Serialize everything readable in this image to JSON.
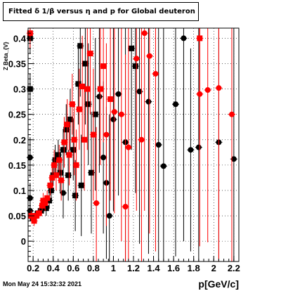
{
  "title": "Fitted δ 1/β versus η and p for Global deuteron",
  "timestamp": "Mon May 24 15:32:32 2021",
  "chart_data": {
    "type": "scatter",
    "title": "Fitted δ 1/β versus η and p for Global deuteron",
    "xlabel": "p[GeV/c]",
    "ylabel": "Z Beta_{V}",
    "xlim": [
      0.15,
      2.25
    ],
    "ylim": [
      -0.04,
      0.42
    ],
    "grid": true,
    "x_ticks": [
      0.2,
      0.4,
      0.6,
      0.8,
      1,
      1.2,
      1.4,
      1.6,
      1.8,
      2,
      2.2
    ],
    "x_tick_labels": [
      "0.2",
      "0.4",
      "0.6",
      "0.8",
      "1",
      "1.2",
      "1.4",
      "1.6",
      "1.8",
      "2",
      "2.2"
    ],
    "y_ticks": [
      0,
      0.05,
      0.1,
      0.15,
      0.2,
      0.25,
      0.3,
      0.35,
      0.4
    ],
    "y_tick_labels": [
      "0",
      "0.05",
      "0.1",
      "0.15",
      "0.2",
      "0.25",
      "0.3",
      "0.35",
      "0.4"
    ],
    "colors": {
      "black_series": "#000000",
      "red_series": "#ff0000"
    },
    "series": [
      {
        "color": "#000000",
        "points": [
          {
            "x": 0.17,
            "y": 0.4,
            "err": 0.03,
            "m": "square"
          },
          {
            "x": 0.17,
            "y": 0.3,
            "err": 0.03,
            "m": "square"
          },
          {
            "x": 0.17,
            "y": 0.165,
            "err": 0.04,
            "m": "circle"
          },
          {
            "x": 0.17,
            "y": 0.085,
            "err": 0.03,
            "m": "circle"
          },
          {
            "x": 0.17,
            "y": 0.06,
            "err": 0.02,
            "m": "circle"
          },
          {
            "x": 0.2,
            "y": 0.045,
            "err": 0.01,
            "m": "square"
          },
          {
            "x": 0.22,
            "y": 0.05,
            "err": 0.01,
            "m": "square"
          },
          {
            "x": 0.25,
            "y": 0.055,
            "err": 0.01,
            "m": "square"
          },
          {
            "x": 0.28,
            "y": 0.06,
            "err": 0.01,
            "m": "square"
          },
          {
            "x": 0.31,
            "y": 0.07,
            "err": 0.01,
            "m": "square"
          },
          {
            "x": 0.33,
            "y": 0.065,
            "err": 0.015,
            "m": "square"
          },
          {
            "x": 0.36,
            "y": 0.08,
            "err": 0.015,
            "m": "square"
          },
          {
            "x": 0.38,
            "y": 0.1,
            "err": 0.02,
            "m": "square"
          },
          {
            "x": 0.4,
            "y": 0.13,
            "err": 0.02,
            "m": "square"
          },
          {
            "x": 0.42,
            "y": 0.16,
            "err": 0.03,
            "m": "square"
          },
          {
            "x": 0.45,
            "y": 0.17,
            "err": 0.03,
            "m": "square"
          },
          {
            "x": 0.47,
            "y": 0.135,
            "err": 0.04,
            "m": "square"
          },
          {
            "x": 0.5,
            "y": 0.18,
            "err": 0.04,
            "m": "square"
          },
          {
            "x": 0.5,
            "y": 0.095,
            "err": 0.05,
            "m": "circle"
          },
          {
            "x": 0.53,
            "y": 0.22,
            "err": 0.05,
            "m": "square"
          },
          {
            "x": 0.55,
            "y": 0.13,
            "err": 0.05,
            "m": "square"
          },
          {
            "x": 0.57,
            "y": 0.24,
            "err": 0.06,
            "m": "square"
          },
          {
            "x": 0.6,
            "y": 0.18,
            "err": 0.06,
            "m": "square"
          },
          {
            "x": 0.62,
            "y": 0.09,
            "err": 0.07,
            "m": "square"
          },
          {
            "x": 0.65,
            "y": 0.31,
            "err": 0.08,
            "m": "square"
          },
          {
            "x": 0.67,
            "y": 0.385,
            "err": 0.1,
            "m": "square"
          },
          {
            "x": 0.68,
            "y": 0.11,
            "err": 0.1,
            "m": "square"
          },
          {
            "x": 0.72,
            "y": 0.35,
            "err": 0.12,
            "m": "square"
          },
          {
            "x": 0.75,
            "y": 0.27,
            "err": 0.12,
            "m": "square"
          },
          {
            "x": 0.78,
            "y": 0.135,
            "err": 0.12,
            "m": "square"
          },
          {
            "x": 0.82,
            "y": 0.25,
            "err": 0.15,
            "m": "square"
          },
          {
            "x": 0.86,
            "y": 0.285,
            "err": 0.15,
            "m": "circle"
          },
          {
            "x": 0.9,
            "y": 0.165,
            "err": 0.15,
            "m": "circle"
          },
          {
            "x": 0.93,
            "y": 0.115,
            "err": 0.15,
            "m": "circle"
          },
          {
            "x": 0.96,
            "y": 0.05,
            "err": 0.2,
            "m": "circle"
          },
          {
            "x": 1.0,
            "y": 0.24,
            "err": 0.18,
            "m": "circle"
          },
          {
            "x": 1.05,
            "y": 0.29,
            "err": 0.2,
            "m": "circle"
          },
          {
            "x": 1.12,
            "y": 0.195,
            "err": 0.25,
            "m": "circle"
          },
          {
            "x": 1.18,
            "y": 0.38,
            "err": 0.2,
            "m": "square"
          },
          {
            "x": 1.22,
            "y": 0.345,
            "err": 0.25,
            "m": "square"
          },
          {
            "x": 1.26,
            "y": 0.295,
            "err": 0.3,
            "m": "circle"
          },
          {
            "x": 1.35,
            "y": 0.275,
            "err": 0.3,
            "m": "circle"
          },
          {
            "x": 1.45,
            "y": 0.19,
            "err": 0.35,
            "m": "circle"
          },
          {
            "x": 1.5,
            "y": 0.148,
            "err": 0.35,
            "m": "circle"
          },
          {
            "x": 1.62,
            "y": 0.27,
            "err": 0.3,
            "m": "circle"
          },
          {
            "x": 1.7,
            "y": 0.4,
            "err": 0.4,
            "m": "circle"
          },
          {
            "x": 1.77,
            "y": 0.18,
            "err": 0.2,
            "m": "circle"
          },
          {
            "x": 1.85,
            "y": 0.185,
            "err": 0.3,
            "m": "circle"
          },
          {
            "x": 2.05,
            "y": 0.195,
            "err": 0.3,
            "m": "circle"
          },
          {
            "x": 2.2,
            "y": 0.162,
            "err": 0.3,
            "m": "circle"
          }
        ]
      },
      {
        "color": "#ff0000",
        "points": [
          {
            "x": 0.17,
            "y": 0.41,
            "err": 0.03,
            "m": "square"
          },
          {
            "x": 0.18,
            "y": 0.05,
            "err": 0.01,
            "m": "square"
          },
          {
            "x": 0.21,
            "y": 0.04,
            "err": 0.01,
            "m": "square"
          },
          {
            "x": 0.23,
            "y": 0.05,
            "err": 0.01,
            "m": "square"
          },
          {
            "x": 0.26,
            "y": 0.055,
            "err": 0.01,
            "m": "square"
          },
          {
            "x": 0.29,
            "y": 0.07,
            "err": 0.01,
            "m": "square"
          },
          {
            "x": 0.3,
            "y": 0.08,
            "err": 0.015,
            "m": "square"
          },
          {
            "x": 0.32,
            "y": 0.075,
            "err": 0.015,
            "m": "square"
          },
          {
            "x": 0.34,
            "y": 0.085,
            "err": 0.015,
            "m": "square"
          },
          {
            "x": 0.37,
            "y": 0.11,
            "err": 0.02,
            "m": "square"
          },
          {
            "x": 0.39,
            "y": 0.125,
            "err": 0.02,
            "m": "square"
          },
          {
            "x": 0.41,
            "y": 0.15,
            "err": 0.03,
            "m": "square"
          },
          {
            "x": 0.43,
            "y": 0.13,
            "err": 0.03,
            "m": "square"
          },
          {
            "x": 0.46,
            "y": 0.16,
            "err": 0.03,
            "m": "square"
          },
          {
            "x": 0.48,
            "y": 0.12,
            "err": 0.04,
            "m": "square"
          },
          {
            "x": 0.51,
            "y": 0.195,
            "err": 0.05,
            "m": "square"
          },
          {
            "x": 0.54,
            "y": 0.23,
            "err": 0.05,
            "m": "square"
          },
          {
            "x": 0.56,
            "y": 0.17,
            "err": 0.06,
            "m": "square"
          },
          {
            "x": 0.59,
            "y": 0.27,
            "err": 0.06,
            "m": "square"
          },
          {
            "x": 0.61,
            "y": 0.2,
            "err": 0.07,
            "m": "square"
          },
          {
            "x": 0.63,
            "y": 0.15,
            "err": 0.07,
            "m": "square"
          },
          {
            "x": 0.66,
            "y": 0.26,
            "err": 0.08,
            "m": "square"
          },
          {
            "x": 0.69,
            "y": 0.305,
            "err": 0.1,
            "m": "square"
          },
          {
            "x": 0.71,
            "y": 0.2,
            "err": 0.1,
            "m": "square"
          },
          {
            "x": 0.74,
            "y": 0.3,
            "err": 0.12,
            "m": "square"
          },
          {
            "x": 0.77,
            "y": 0.37,
            "err": 0.12,
            "m": "square"
          },
          {
            "x": 0.8,
            "y": 0.21,
            "err": 0.13,
            "m": "square"
          },
          {
            "x": 0.83,
            "y": 0.075,
            "err": 0.15,
            "m": "circle"
          },
          {
            "x": 0.87,
            "y": 0.3,
            "err": 0.15,
            "m": "square"
          },
          {
            "x": 0.9,
            "y": 0.345,
            "err": 0.15,
            "m": "square"
          },
          {
            "x": 0.93,
            "y": 0.21,
            "err": 0.18,
            "m": "circle"
          },
          {
            "x": 0.97,
            "y": 0.28,
            "err": 0.2,
            "m": "square"
          },
          {
            "x": 1.01,
            "y": 0.255,
            "err": 0.2,
            "m": "circle"
          },
          {
            "x": 1.08,
            "y": 0.25,
            "err": 0.25,
            "m": "circle"
          },
          {
            "x": 1.12,
            "y": 0.068,
            "err": 0.3,
            "m": "circle"
          },
          {
            "x": 1.15,
            "y": 0.185,
            "err": 0.25,
            "m": "circle"
          },
          {
            "x": 1.23,
            "y": 0.36,
            "err": 0.3,
            "m": "circle"
          },
          {
            "x": 1.28,
            "y": 0.2,
            "err": 0.3,
            "m": "circle"
          },
          {
            "x": 1.31,
            "y": 0.41,
            "err": 0.35,
            "m": "circle"
          },
          {
            "x": 1.36,
            "y": 0.365,
            "err": 0.35,
            "m": "circle"
          },
          {
            "x": 1.42,
            "y": 0.33,
            "err": 0.35,
            "m": "circle"
          },
          {
            "x": 1.86,
            "y": 0.4,
            "err": 0.2,
            "m": "square"
          },
          {
            "x": 1.86,
            "y": 0.29,
            "err": 0.3,
            "m": "circle"
          },
          {
            "x": 1.94,
            "y": 0.298,
            "err": 0.3,
            "m": "circle"
          },
          {
            "x": 2.05,
            "y": 0.302,
            "err": 0.35,
            "m": "circle"
          },
          {
            "x": 2.18,
            "y": 0.25,
            "err": 0.35,
            "m": "circle"
          }
        ]
      }
    ]
  }
}
